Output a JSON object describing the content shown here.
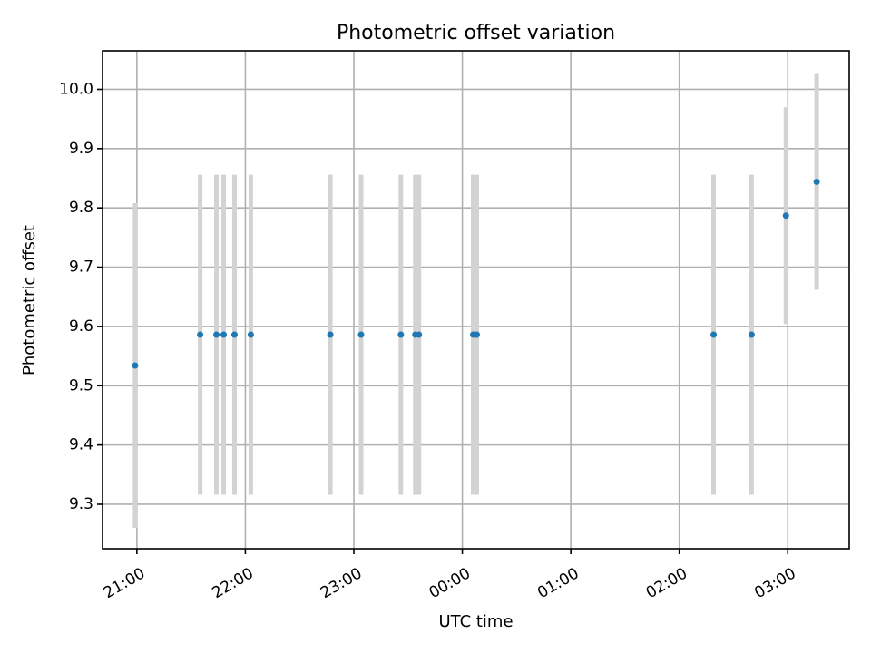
{
  "chart_data": {
    "type": "scatter",
    "title": "Photometric offset variation",
    "xlabel": "UTC time",
    "ylabel": "Photometric offset",
    "grid": true,
    "xlim": [
      "20:41",
      "03:34"
    ],
    "ylim": [
      9.225,
      10.065
    ],
    "x_ticks": [
      "21:00",
      "22:00",
      "23:00",
      "00:00",
      "01:00",
      "02:00",
      "03:00"
    ],
    "y_ticks": [
      "9.3",
      "9.4",
      "9.5",
      "9.6",
      "9.7",
      "9.8",
      "9.9",
      "10.0"
    ],
    "colors": {
      "point": "#1f77b4",
      "errorbar": "#d3d3d3"
    },
    "points": [
      {
        "time": "20:59",
        "y": 9.534,
        "yerr": 0.274
      },
      {
        "time": "21:35",
        "y": 9.586,
        "yerr": 0.27
      },
      {
        "time": "21:44",
        "y": 9.586,
        "yerr": 0.27
      },
      {
        "time": "21:48",
        "y": 9.586,
        "yerr": 0.27
      },
      {
        "time": "21:54",
        "y": 9.586,
        "yerr": 0.27
      },
      {
        "time": "22:03",
        "y": 9.586,
        "yerr": 0.27
      },
      {
        "time": "22:47",
        "y": 9.586,
        "yerr": 0.27
      },
      {
        "time": "23:04",
        "y": 9.586,
        "yerr": 0.27
      },
      {
        "time": "23:26",
        "y": 9.586,
        "yerr": 0.27
      },
      {
        "time": "23:34",
        "y": 9.586,
        "yerr": 0.27
      },
      {
        "time": "23:36",
        "y": 9.586,
        "yerr": 0.27
      },
      {
        "time": "00:06",
        "y": 9.586,
        "yerr": 0.27
      },
      {
        "time": "00:08",
        "y": 9.586,
        "yerr": 0.27
      },
      {
        "time": "02:19",
        "y": 9.586,
        "yerr": 0.27
      },
      {
        "time": "02:40",
        "y": 9.586,
        "yerr": 0.27
      },
      {
        "time": "02:59",
        "y": 9.787,
        "yerr": 0.183
      },
      {
        "time": "03:16",
        "y": 9.844,
        "yerr": 0.182
      }
    ]
  }
}
